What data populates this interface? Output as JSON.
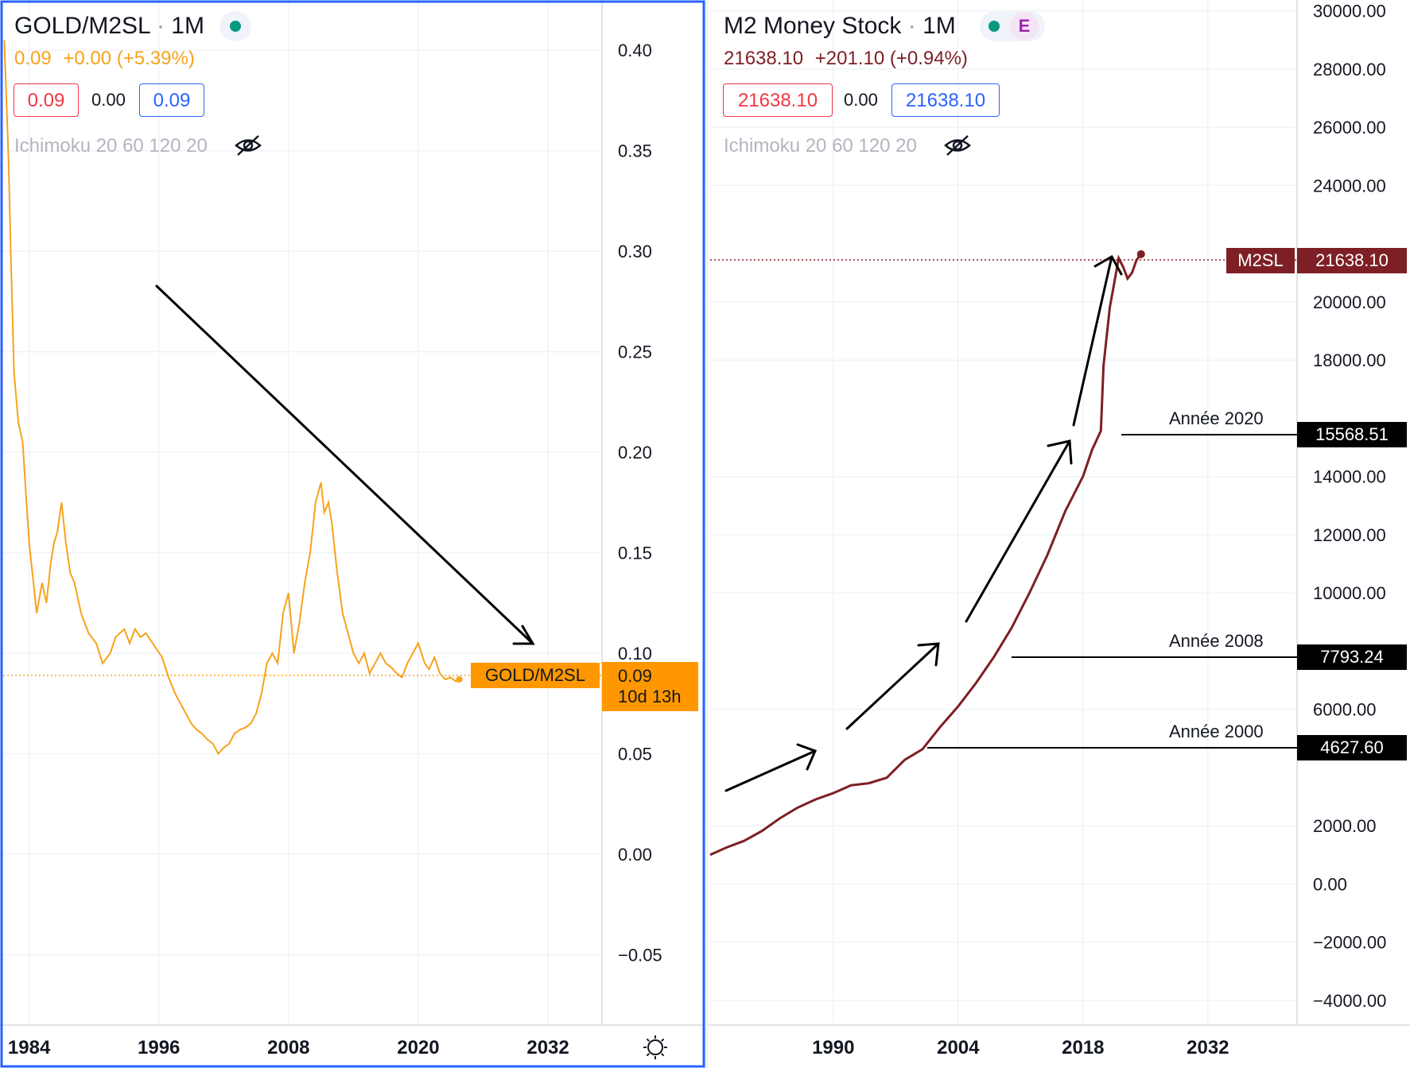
{
  "left": {
    "symbol": "GOLD/M2SL",
    "interval": "1M",
    "quote": {
      "last": "0.09",
      "change": "+0.00",
      "change_pct": "(+5.39%)"
    },
    "buy_box": "0.09",
    "spread": "0.00",
    "sell_box": "0.09",
    "indicator": "Ichimoku 20 60 120 20",
    "price_tag_label": "GOLD/M2SL",
    "price_tag_value": "0.09",
    "countdown": "10d 13h",
    "yaxis_labels": [
      "0.40",
      "0.35",
      "0.30",
      "0.25",
      "0.20",
      "0.15",
      "0.10",
      "0.05",
      "0.00",
      "−0.05"
    ],
    "xaxis_labels": [
      "1984",
      "1996",
      "2008",
      "2020",
      "2032"
    ]
  },
  "right": {
    "symbol": "M2 Money Stock",
    "interval": "1M",
    "badge": "E",
    "quote": {
      "last": "21638.10",
      "change": "+201.10",
      "change_pct": "(+0.94%)"
    },
    "buy_box": "21638.10",
    "spread": "0.00",
    "sell_box": "21638.10",
    "indicator": "Ichimoku 20 60 120 20",
    "price_tag_label": "M2SL",
    "price_tag_value": "21638.10",
    "yaxis_labels": [
      "30000.00",
      "28000.00",
      "26000.00",
      "24000.00",
      "20000.00",
      "18000.00",
      "14000.00",
      "12000.00",
      "10000.00",
      "6000.00",
      "2000.00",
      "0.00",
      "−2000.00",
      "−4000.00"
    ],
    "xaxis_labels": [
      "1990",
      "2004",
      "2018",
      "2032"
    ],
    "annotations": [
      {
        "text": "Année 2020",
        "value": "15568.51"
      },
      {
        "text": "Année 2008",
        "value": "7793.24"
      },
      {
        "text": "Année 2000",
        "value": "4627.60"
      }
    ]
  },
  "colors": {
    "gold_line": "#f7a21b",
    "m2_line": "#7d1f24",
    "accent_blue": "#2962ff",
    "up_green": "#089981",
    "down_red": "#f23645"
  },
  "chart_data": [
    {
      "type": "line",
      "title": "GOLD/M2SL, 1M",
      "xlabel": "",
      "ylabel": "",
      "ylim": [
        -0.085,
        0.425
      ],
      "xlim": [
        1981.6,
        2037.0
      ],
      "x": [
        1981.7,
        1981.9,
        1982.1,
        1982.3,
        1982.6,
        1983.0,
        1983.4,
        1983.7,
        1984.0,
        1984.4,
        1984.7,
        1985.2,
        1985.6,
        1986.0,
        1986.3,
        1986.6,
        1987.0,
        1987.4,
        1987.8,
        1988.2,
        1988.8,
        1989.5,
        1990.2,
        1990.8,
        1991.5,
        1992.0,
        1992.8,
        1993.3,
        1993.8,
        1994.3,
        1994.8,
        1995.3,
        1995.8,
        1996.3,
        1996.9,
        1997.5,
        1998.0,
        1998.5,
        1999.0,
        1999.5,
        2000.0,
        2000.5,
        2001.0,
        2001.5,
        2002.0,
        2002.5,
        2003.0,
        2003.5,
        2004.0,
        2004.5,
        2005.0,
        2005.5,
        2006.0,
        2006.5,
        2007.0,
        2007.5,
        2008.0,
        2008.5,
        2009.0,
        2009.5,
        2010.0,
        2010.5,
        2011.0,
        2011.3,
        2011.7,
        2012.0,
        2012.5,
        2013.0,
        2013.5,
        2014.0,
        2014.5,
        2015.0,
        2015.5,
        2016.0,
        2016.5,
        2017.0,
        2017.5,
        2018.0,
        2018.5,
        2019.0,
        2019.5,
        2020.0,
        2020.6,
        2021.0,
        2021.5,
        2022.0,
        2022.5,
        2023.0,
        2023.5,
        2023.8
      ],
      "values": [
        0.405,
        0.375,
        0.345,
        0.3,
        0.24,
        0.215,
        0.205,
        0.18,
        0.155,
        0.135,
        0.12,
        0.135,
        0.125,
        0.145,
        0.155,
        0.16,
        0.175,
        0.155,
        0.14,
        0.135,
        0.12,
        0.11,
        0.105,
        0.095,
        0.1,
        0.108,
        0.112,
        0.105,
        0.112,
        0.108,
        0.11,
        0.106,
        0.102,
        0.098,
        0.088,
        0.08,
        0.075,
        0.07,
        0.065,
        0.062,
        0.06,
        0.057,
        0.055,
        0.05,
        0.053,
        0.055,
        0.06,
        0.062,
        0.063,
        0.065,
        0.07,
        0.08,
        0.095,
        0.1,
        0.095,
        0.12,
        0.13,
        0.1,
        0.115,
        0.135,
        0.15,
        0.175,
        0.185,
        0.17,
        0.175,
        0.165,
        0.14,
        0.12,
        0.11,
        0.1,
        0.095,
        0.1,
        0.09,
        0.095,
        0.1,
        0.095,
        0.093,
        0.09,
        0.088,
        0.095,
        0.1,
        0.105,
        0.095,
        0.092,
        0.098,
        0.09,
        0.087,
        0.088,
        0.086,
        0.087
      ]
    },
    {
      "type": "line",
      "title": "M2 Money Stock, 1M",
      "xlabel": "",
      "ylabel": "",
      "ylim": [
        -4850,
        30370
      ],
      "xlim": [
        1976.2,
        2042.0
      ],
      "x": [
        1976.2,
        1978,
        1980,
        1982,
        1984,
        1986,
        1988,
        1990,
        1992,
        1994,
        1996,
        1998,
        2000,
        2002,
        2004,
        2006,
        2008,
        2010,
        2012,
        2014,
        2016,
        2018,
        2019,
        2020.0,
        2020.3,
        2021,
        2022,
        2022.5,
        2023,
        2023.5,
        2024.0,
        2024.5
      ],
      "values": [
        1000,
        1250,
        1480,
        1820,
        2250,
        2620,
        2900,
        3120,
        3390,
        3460,
        3650,
        4260,
        4627.6,
        5400,
        6100,
        6900,
        7793.24,
        8800,
        10000,
        11300,
        12800,
        14000,
        14900,
        15568.51,
        17800,
        19800,
        21500,
        21200,
        20800,
        21000,
        21437,
        21638.1
      ]
    }
  ]
}
